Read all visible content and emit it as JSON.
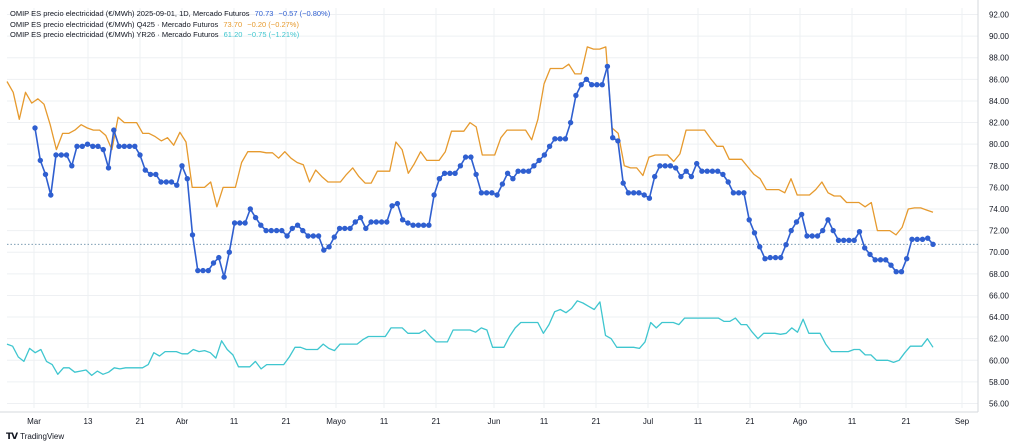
{
  "legend": [
    {
      "label": "OMIP ES precio electricidad (€/MWh) 2025-09-01, 1D, Mercado Futuros",
      "value": "70.73",
      "change": "−0.57 (−0.80%)"
    },
    {
      "label": "OMIP ES precio electricidad (€/MWh) Q425 · Mercado Futuros",
      "value": "73.70",
      "change": "−0.20 (−0.27%)"
    },
    {
      "label": "OMIP ES precio electricidad (€/MWh) YR26 · Mercado Futuros",
      "value": "61.20",
      "change": "−0.75 (−1.21%)"
    }
  ],
  "brand": {
    "name": "TradingView",
    "logo": "tv-logo"
  },
  "colors": {
    "main": "#2f5fd0",
    "q425": "#e69a2e",
    "yr26": "#3fc6cf",
    "grid": "#eef0f3",
    "refline": "#6a8fa8"
  },
  "chart_data": {
    "type": "line",
    "ylim": [
      55,
      93
    ],
    "yticks": [
      "92.00",
      "90.00",
      "88.00",
      "86.00",
      "84.00",
      "82.00",
      "80.00",
      "78.00",
      "76.00",
      "74.00",
      "72.00",
      "70.00",
      "68.00",
      "66.00",
      "64.00",
      "62.00",
      "60.00",
      "58.00",
      "56.00"
    ],
    "xticks": [
      "Mar",
      "13",
      "21",
      "Abr",
      "11",
      "21",
      "Mayo",
      "11",
      "21",
      "Jun",
      "11",
      "21",
      "Jul",
      "11",
      "21",
      "Ago",
      "11",
      "21",
      "Sep"
    ],
    "grid": true,
    "last_value_line": 70.73,
    "series": [
      {
        "name": "2025-09-01",
        "markers": true,
        "values": [
          81.5,
          78.5,
          77.2,
          75.3,
          79,
          79,
          79,
          78,
          79.8,
          79.8,
          80,
          79.8,
          79.8,
          79.5,
          77.8,
          81.3,
          79.8,
          79.8,
          79.8,
          79.8,
          79,
          77.6,
          77.2,
          77.2,
          76.5,
          76.5,
          76.5,
          76.2,
          78,
          76.8,
          71.6,
          68.3,
          68.3,
          68.3,
          69,
          69.5,
          67.7,
          70,
          72.7,
          72.7,
          72.7,
          74,
          73.2,
          72.5,
          72,
          72,
          72,
          72,
          71.5,
          72.2,
          72.5,
          72,
          71.5,
          71.5,
          71.5,
          70.2,
          70.5,
          71.4,
          72.2,
          72.2,
          72.2,
          72.8,
          73.2,
          72.2,
          72.8,
          72.8,
          72.8,
          72.8,
          74.3,
          74.5,
          73,
          72.7,
          72.5,
          72.5,
          72.5,
          72.5,
          75.3,
          76.8,
          77.3,
          77.3,
          77.3,
          78,
          78.8,
          78.8,
          77.2,
          75.5,
          75.5,
          75.5,
          75.3,
          76.3,
          77.3,
          76.8,
          77.5,
          77.5,
          77.5,
          78,
          78.5,
          79,
          79.8,
          80.5,
          80.5,
          80.5,
          82,
          84.5,
          85.5,
          86,
          85.5,
          85.5,
          85.5,
          87.2,
          80.6,
          80.3,
          76.4,
          75.5,
          75.5,
          75.5,
          75.3,
          75,
          77,
          78,
          78,
          78,
          77.8,
          77,
          77.5,
          77,
          78.2,
          77.5,
          77.5,
          77.5,
          77.5,
          77.2,
          76.5,
          75.5,
          75.5,
          75.5,
          73,
          71.8,
          70.5,
          69.4,
          69.5,
          69.5,
          69.5,
          70.7,
          72,
          72.8,
          73.5,
          71.5,
          71.5,
          71.5,
          72,
          73,
          72,
          71.1,
          71.1,
          71.1,
          71.1,
          71.9,
          70.4,
          69.8,
          69.3,
          69.3,
          69.3,
          68.8,
          68.2,
          68.2,
          69.4,
          71.2,
          71.2,
          71.2,
          71.3,
          70.73
        ]
      },
      {
        "name": "Q425",
        "markers": false,
        "values": [
          85.8,
          84.8,
          82.3,
          84.8,
          83.8,
          84.2,
          83.7,
          81.8,
          79.5,
          81,
          81,
          81.3,
          81.8,
          81.5,
          81.3,
          81.3,
          80.8,
          79.5,
          82.5,
          82.0,
          82.0,
          82.0,
          81.0,
          81.0,
          80.7,
          80.3,
          80.6,
          79.9,
          81.1,
          80.2,
          76,
          76,
          76,
          76.5,
          74.2,
          76,
          76,
          76,
          78.3,
          79.3,
          79.3,
          79.3,
          79.2,
          79.2,
          78.7,
          79.3,
          78.7,
          78.3,
          78.1,
          76.5,
          77.6,
          77,
          76.5,
          76.5,
          76.5,
          77.2,
          77.8,
          77,
          76.4,
          76.4,
          77.5,
          77.5,
          77.5,
          80.2,
          79.5,
          77.3,
          78.2,
          79.3,
          78.5,
          78.5,
          78.5,
          79.3,
          81.2,
          81.2,
          81.2,
          82.0,
          81.6,
          79,
          79,
          79,
          80.6,
          81.3,
          81.3,
          81.3,
          81.3,
          80.4,
          82.3,
          85.6,
          87.0,
          87.0,
          87.0,
          87.4,
          86.5,
          86.5,
          89.0,
          88.8,
          88.8,
          89.0,
          81.5,
          81.0,
          78.0,
          77.8,
          77.8,
          77.1,
          78.8,
          79.0,
          79.0,
          79.0,
          78.4,
          79.1,
          81.3,
          81.3,
          81.3,
          81.3,
          80.5,
          79.8,
          79.8,
          78.6,
          78.6,
          78.6,
          77.9,
          77.2,
          76.8,
          75.8,
          75.8,
          75.8,
          75.5,
          76.8,
          75.3,
          75.3,
          75.3,
          75.8,
          76.5,
          75.5,
          75.2,
          75.2,
          74.6,
          74.6,
          74.6,
          74.2,
          74.6,
          72.0,
          72.0,
          72.0,
          71.6,
          72.3,
          74.0,
          74.1,
          74.1,
          73.9,
          73.7
        ]
      },
      {
        "name": "YR26",
        "markers": false,
        "values": [
          61.5,
          61.3,
          60.3,
          59.9,
          61.1,
          60.7,
          61.0,
          59.9,
          59.6,
          58.7,
          59.3,
          59.3,
          58.9,
          59.0,
          59.1,
          58.6,
          59.0,
          58.7,
          58.9,
          59.3,
          59.2,
          59.3,
          59.3,
          59.3,
          59.3,
          59.6,
          60.7,
          60.4,
          60.8,
          60.8,
          60.8,
          60.6,
          60.6,
          61.0,
          60.8,
          60.9,
          60.7,
          60.2,
          61.8,
          61.0,
          60.5,
          59.4,
          59.4,
          59.4,
          59.9,
          59.2,
          59.6,
          59.6,
          59.6,
          59.6,
          60.3,
          61.2,
          61.2,
          61.0,
          61.0,
          61.0,
          61.5,
          61.1,
          60.9,
          61.5,
          61.5,
          61.5,
          61.5,
          61.9,
          62.2,
          62.2,
          62.2,
          62.2,
          63.0,
          63.0,
          63.0,
          62.5,
          62.5,
          62.5,
          62.8,
          62.2,
          61.7,
          61.7,
          61.7,
          62.8,
          62.8,
          62.8,
          62.8,
          62.6,
          63.0,
          62.8,
          61.2,
          61.2,
          61.2,
          62.2,
          63.0,
          63.5,
          63.5,
          63.5,
          63.5,
          62.5,
          63.3,
          64.5,
          64.7,
          64.4,
          64.8,
          65.5,
          65.3,
          65.0,
          64.7,
          65.4,
          62.3,
          62.0,
          61.2,
          61.2,
          61.2,
          61.2,
          61.1,
          61.7,
          63.5,
          63.0,
          63.5,
          63.5,
          63.5,
          63.3,
          63.9,
          63.9,
          63.9,
          63.9,
          63.9,
          63.9,
          63.9,
          63.6,
          63.6,
          63.9,
          63.3,
          63.3,
          62.6,
          62.0,
          62.5,
          62.5,
          62.5,
          62.4,
          62.5,
          63.0,
          62.6,
          63.8,
          62.5,
          62.5,
          62.5,
          61.5,
          60.8,
          60.8,
          60.8,
          60.8,
          61.0,
          61.0,
          60.5,
          60.5,
          60.0,
          60.0,
          60.0,
          59.8,
          60.0,
          60.7,
          61.3,
          61.3,
          61.3,
          62.0,
          61.2
        ]
      }
    ]
  }
}
